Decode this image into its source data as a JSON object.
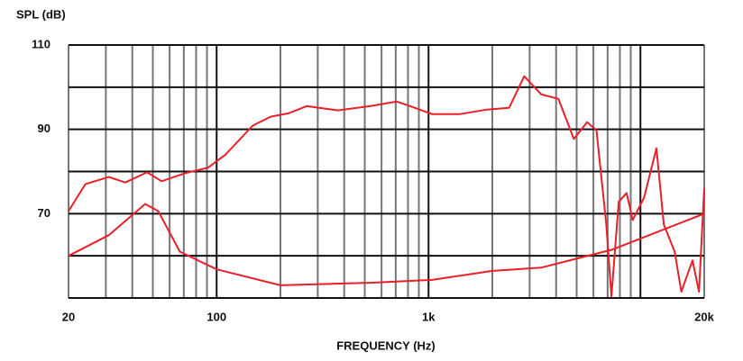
{
  "chart_data": {
    "type": "line",
    "y_label": "SPL (dB)",
    "x_label": "FREQUENCY (Hz)",
    "xscale": "log",
    "xlim": [
      20,
      20000
    ],
    "ylim": [
      50,
      110
    ],
    "xticks": [
      20,
      100,
      {
        "value": 1000,
        "label": "1k"
      },
      {
        "value": 20000,
        "label": "20k"
      }
    ],
    "yticks": [
      70,
      90,
      110
    ],
    "xgrid": [
      20,
      30,
      40,
      50,
      60,
      70,
      80,
      90,
      100,
      200,
      300,
      400,
      500,
      600,
      700,
      800,
      900,
      1000,
      2000,
      3000,
      4000,
      5000,
      6000,
      7000,
      8000,
      9000,
      10000,
      20000
    ],
    "ygrid": [
      50,
      60,
      70,
      80,
      90,
      100,
      110
    ],
    "series": [
      {
        "color": "#e8202a",
        "x": [
          20,
          24,
          31,
          37,
          47,
          55,
          71,
          91,
          110,
          148,
          180,
          218,
          266,
          374,
          530,
          707,
          820,
          1040,
          1400,
          1890,
          2400,
          2830,
          3400,
          4100,
          4850,
          5600,
          6200,
          6900,
          7300,
          7900,
          8600,
          9200,
          10400,
          11900,
          12900,
          14500,
          15600,
          17600,
          18900,
          20000
        ],
        "values": [
          70.6,
          77,
          78.7,
          77.4,
          79.8,
          77.7,
          79.6,
          80.9,
          84,
          90.9,
          93,
          93.8,
          95.5,
          94.5,
          95.5,
          96.6,
          95.5,
          93.6,
          93.6,
          94.7,
          95.1,
          102.6,
          98.3,
          97.2,
          87.7,
          91.7,
          89.8,
          67.4,
          50.4,
          72.8,
          74.9,
          68.5,
          73.8,
          85.5,
          67.4,
          61,
          51.5,
          58.9,
          51.5,
          76
        ]
      },
      {
        "color": "#e8202a",
        "x": [
          20,
          31,
          46,
          53,
          67,
          100,
          200,
          530,
          1040,
          1980,
          3400,
          7400,
          20000
        ],
        "values": [
          60,
          64.9,
          72.3,
          70.6,
          61,
          56.8,
          53,
          53.6,
          54.3,
          56.4,
          57.2,
          61.5,
          70
        ]
      }
    ]
  }
}
